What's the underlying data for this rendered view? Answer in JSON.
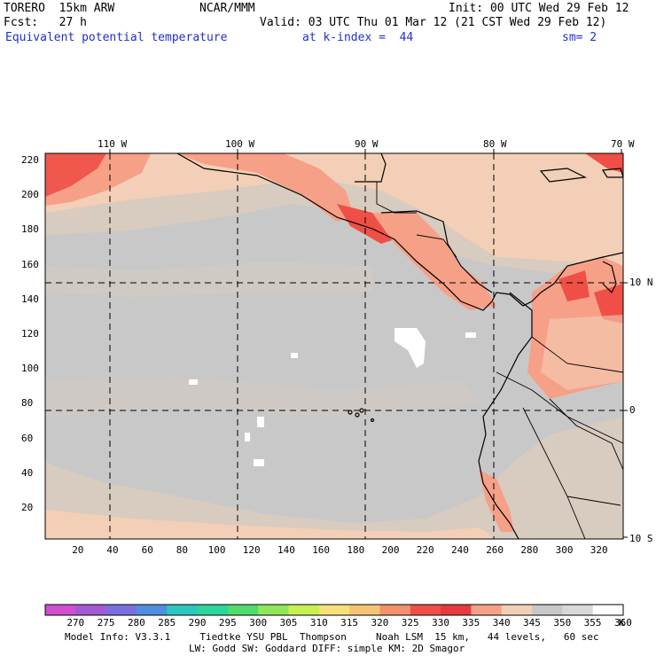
{
  "header": {
    "model": "TORERO  15km ARW",
    "center": "NCAR/MMM",
    "init": "Init: 00 UTC Wed 29 Feb 12",
    "fcst": "Fcst:   27 h",
    "valid": "Valid: 03 UTC Thu 01 Mar 12 (21 CST Wed 29 Feb 12)",
    "field": "Equivalent potential temperature",
    "level": "at k-index =  44",
    "smoothing": "sm= 2"
  },
  "map": {
    "top_lon_labels": [
      "110 W",
      "100 W",
      "90 W",
      "80 W",
      "70 W"
    ],
    "right_lat_labels": [
      "10 N",
      "0",
      "10 S"
    ],
    "y_grid_labels": [
      "220",
      "200",
      "180",
      "160",
      "140",
      "120",
      "100",
      "80",
      "60",
      "40",
      "20"
    ],
    "x_grid_labels": [
      "20",
      "40",
      "60",
      "80",
      "100",
      "120",
      "140",
      "160",
      "180",
      "200",
      "220",
      "240",
      "260",
      "280",
      "300",
      "320"
    ],
    "region_colors": {
      "deep_gray": "#c8c8c8",
      "light_gray": "#d2d2d2",
      "tan": "#d8cbbf",
      "peach": "#f2cfb6",
      "salmon": "#f6a087",
      "red": "#ef4f47",
      "white": "#ffffff"
    }
  },
  "colorbar": {
    "labels": [
      "270",
      "275",
      "280",
      "285",
      "290",
      "295",
      "300",
      "305",
      "310",
      "315",
      "320",
      "325",
      "330",
      "335",
      "340",
      "345",
      "350",
      "355",
      "360",
      "K"
    ],
    "colors": [
      "#cf4fd0",
      "#a25ad4",
      "#7a6fe0",
      "#4f8fe0",
      "#2cc6c0",
      "#2ad69a",
      "#4fdc6c",
      "#8fe85a",
      "#c8f050",
      "#f6e07a",
      "#f6c474",
      "#f4906e",
      "#ef4f47",
      "#e63a3f",
      "#f6a087",
      "#f2cfb6",
      "#c8c8c8",
      "#d8d8d8",
      "#ffffff",
      "#ffffff"
    ]
  },
  "footer": {
    "line1": "Model Info: V3.3.1     Tiedtke YSU PBL  Thompson     Noah LSM  15 km,   44 levels,   60 sec",
    "line2": "LW: Godd SW: Goddard DIFF: simple KM: 2D Smagor"
  }
}
